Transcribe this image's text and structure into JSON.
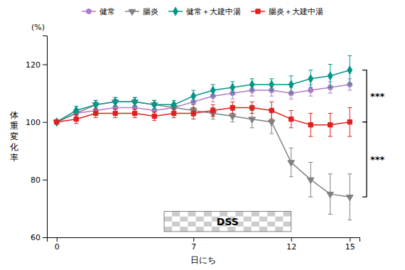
{
  "chart_data": {
    "type": "line",
    "xlabel": "日にち",
    "ylabel": "体\n重\n変\n化\n率",
    "ylabel_unit": "(%)",
    "x": [
      0,
      1,
      2,
      3,
      4,
      5,
      6,
      7,
      8,
      9,
      10,
      11,
      12,
      13,
      14,
      15
    ],
    "series": [
      {
        "name": "健常",
        "color": "#b07cc6",
        "marker": "circle",
        "values": [
          100,
          103,
          104,
          105,
          105,
          104,
          105,
          107,
          109,
          110,
          111,
          111,
          110,
          111,
          112,
          113
        ],
        "errors": [
          0,
          1.5,
          1.5,
          1.5,
          1.5,
          1.5,
          1.5,
          2,
          2,
          2,
          2,
          2,
          2,
          2,
          2,
          2
        ]
      },
      {
        "name": "腸炎",
        "color": "#808080",
        "marker": "triangle_down",
        "values": [
          100,
          103,
          106,
          107,
          107,
          106,
          105,
          104,
          103,
          102,
          101,
          100,
          86,
          80,
          75,
          74
        ],
        "errors": [
          0,
          1.5,
          1.5,
          1.5,
          1.5,
          1.5,
          1.5,
          2,
          2,
          2,
          3,
          4,
          5,
          6,
          7,
          8
        ]
      },
      {
        "name": "健常＋大建中湯",
        "color": "#009688",
        "marker": "diamond",
        "values": [
          100,
          104,
          106,
          107,
          107,
          106,
          106,
          109,
          111,
          112,
          113,
          113,
          113,
          115,
          116,
          118
        ],
        "errors": [
          0,
          1.5,
          1.5,
          1.5,
          1.5,
          1.5,
          1.5,
          2,
          2,
          2,
          2,
          2,
          3,
          3,
          4,
          5
        ]
      },
      {
        "name": "腸炎＋大建中湯",
        "color": "#e02020",
        "marker": "square",
        "values": [
          100,
          101,
          103,
          103,
          103,
          102,
          103,
          103,
          104,
          105,
          105,
          104,
          101,
          99,
          99,
          100
        ],
        "errors": [
          0,
          1.5,
          1.5,
          1.5,
          1.5,
          1.5,
          1.5,
          2,
          2,
          2,
          2,
          3,
          3,
          4,
          4,
          5
        ]
      }
    ],
    "xlim": [
      -0.5,
      15.5
    ],
    "xticks": [
      0,
      7,
      12,
      15
    ],
    "ylim": [
      60,
      130
    ],
    "yticks": [
      60,
      80,
      100,
      120
    ],
    "grid": false,
    "annotations": [
      {
        "text": "DSS",
        "x": [
          5.5,
          12
        ],
        "y": [
          62,
          69
        ]
      },
      {
        "text": "***",
        "y": [
          100,
          118
        ]
      },
      {
        "text": "***",
        "y": [
          74,
          100
        ]
      }
    ]
  }
}
